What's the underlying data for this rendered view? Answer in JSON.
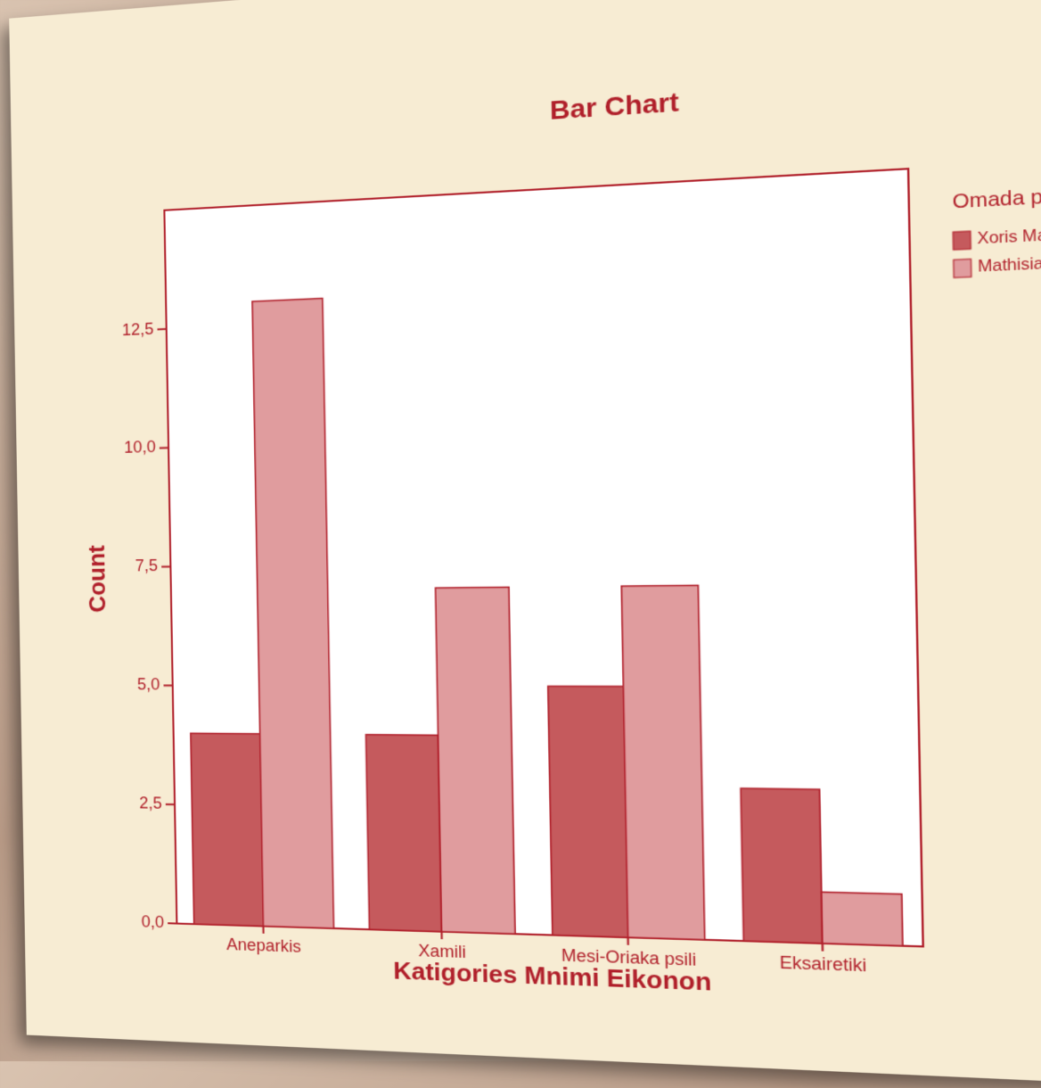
{
  "chart_data": {
    "type": "bar",
    "title": "Bar Chart",
    "x_label": "Katigories Mnimi Eikonon",
    "y_label": "Count",
    "categories": [
      "Aneparkis",
      "Xamili",
      "Mesi-Oriaka psili",
      "Eksairetiki"
    ],
    "legend_title": "Omada paidiovn",
    "series": [
      {
        "name": "Xoris Mathisiakes",
        "color": "#c55a5d",
        "values": [
          4,
          4,
          5,
          3
        ]
      },
      {
        "name": "Mathisiakes",
        "color": "#e09c9e",
        "values": [
          13,
          7,
          7,
          1
        ]
      }
    ],
    "ylim": [
      0,
      15
    ],
    "yticks": [
      {
        "value": 0,
        "label": "0,0"
      },
      {
        "value": 2.5,
        "label": "2,5"
      },
      {
        "value": 5,
        "label": "5,0"
      },
      {
        "value": 7.5,
        "label": "7,5"
      },
      {
        "value": 10,
        "label": "10,0"
      },
      {
        "value": 12.5,
        "label": "12,5"
      }
    ],
    "legend": "right"
  }
}
